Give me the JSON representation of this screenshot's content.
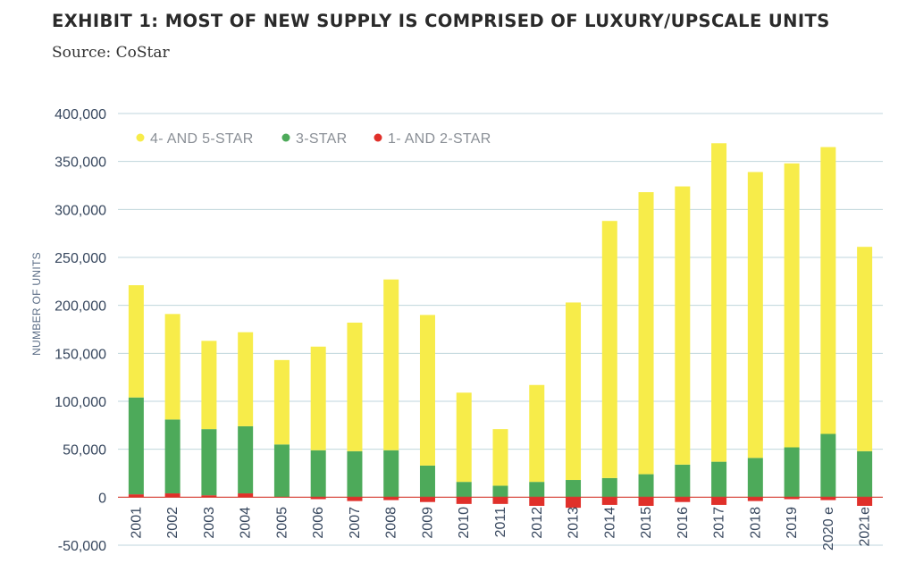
{
  "chart_data": {
    "type": "bar",
    "stacked": true,
    "title": "EXHIBIT 1: MOST OF NEW SUPPLY IS COMPRISED OF LUXURY/UPSCALE UNITS",
    "subtitle": "Source: CoStar",
    "ylabel": "NUMBER OF UNITS",
    "xlabel": "",
    "ylim": [
      -50000,
      400000
    ],
    "yticks": [
      -50000,
      0,
      50000,
      100000,
      150000,
      200000,
      250000,
      300000,
      350000,
      400000
    ],
    "ytick_labels": [
      "-50,000",
      "0",
      "50,000",
      "100,000",
      "150,000",
      "200,000",
      "250,000",
      "300,000",
      "350,000",
      "400,000"
    ],
    "grid": true,
    "legend_position": "top-left",
    "categories": [
      "2001",
      "2002",
      "2003",
      "2004",
      "2005",
      "2006",
      "2007",
      "2008",
      "2009",
      "2010",
      "2011",
      "2012",
      "2013",
      "2014",
      "2015",
      "2016",
      "2017",
      "2018",
      "2019",
      "2020 e",
      "2021e"
    ],
    "series": [
      {
        "name": "1- AND 2-STAR",
        "color": "#e0302a",
        "values": [
          3000,
          4000,
          2000,
          4000,
          0,
          -2000,
          -4000,
          -3000,
          -5000,
          -7000,
          -7000,
          -9000,
          -11000,
          -8000,
          -9000,
          -5000,
          -8000,
          -4000,
          -2000,
          -3000,
          -9000
        ]
      },
      {
        "name": "3-STAR",
        "color": "#4daa5a",
        "values": [
          101000,
          77000,
          69000,
          70000,
          55000,
          49000,
          48000,
          49000,
          33000,
          16000,
          12000,
          16000,
          18000,
          20000,
          24000,
          34000,
          37000,
          41000,
          52000,
          66000,
          48000
        ]
      },
      {
        "name": "4- AND 5-STAR",
        "color": "#f7ec4a",
        "values": [
          117000,
          110000,
          92000,
          98000,
          88000,
          108000,
          134000,
          178000,
          157000,
          93000,
          59000,
          101000,
          185000,
          268000,
          294000,
          290000,
          332000,
          298000,
          296000,
          299000,
          213000
        ]
      }
    ]
  }
}
